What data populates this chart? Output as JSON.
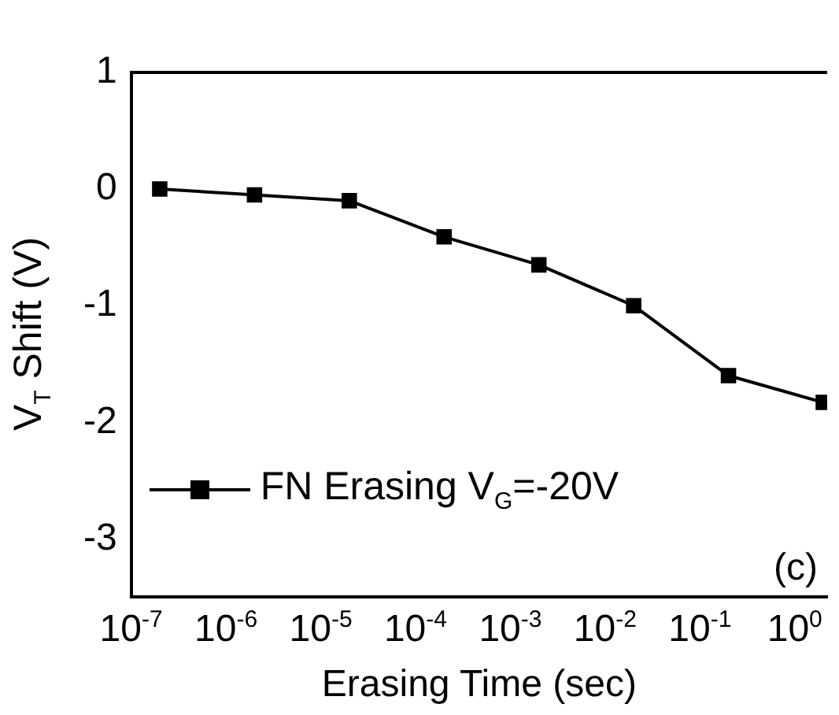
{
  "chart_data": {
    "type": "line",
    "xlabel": "Erasing Time (sec)",
    "ylabel": "V$_{T}$ Shift (V)",
    "log": "x",
    "x": [
      2e-07,
      2e-06,
      2e-05,
      0.0002,
      0.002,
      0.02,
      0.2,
      2
    ],
    "series": [
      {
        "name": "FN Erasing V$_{G}$=-20V",
        "color": "#000000",
        "values": [
          0,
          -0.05,
          -0.1,
          -0.41,
          -0.65,
          -1.0,
          -1.6,
          -1.83
        ]
      }
    ],
    "xlim": [
      1e-07,
      2.2
    ],
    "xticks": [
      {
        "value": 1e-07,
        "label": "10$^{-7}$"
      },
      {
        "value": 1e-06,
        "label": "10$^{-6}$"
      },
      {
        "value": 1e-05,
        "label": "10$^{-5}$"
      },
      {
        "value": 0.0001,
        "label": "10$^{-4}$"
      },
      {
        "value": 0.001,
        "label": "10$^{-3}$"
      },
      {
        "value": 0.01,
        "label": "10$^{-2}$"
      },
      {
        "value": 0.1,
        "label": "10$^{-1}$"
      },
      {
        "value": 1,
        "label": "10$^{0}$"
      }
    ],
    "ylim": [
      -3.5,
      1
    ],
    "yticks": [
      -3,
      -2,
      -1,
      0,
      1
    ],
    "annotations": [
      "(c)"
    ],
    "grid": false,
    "legend": "bottom left",
    "marker": "square",
    "line_style": "solid"
  }
}
